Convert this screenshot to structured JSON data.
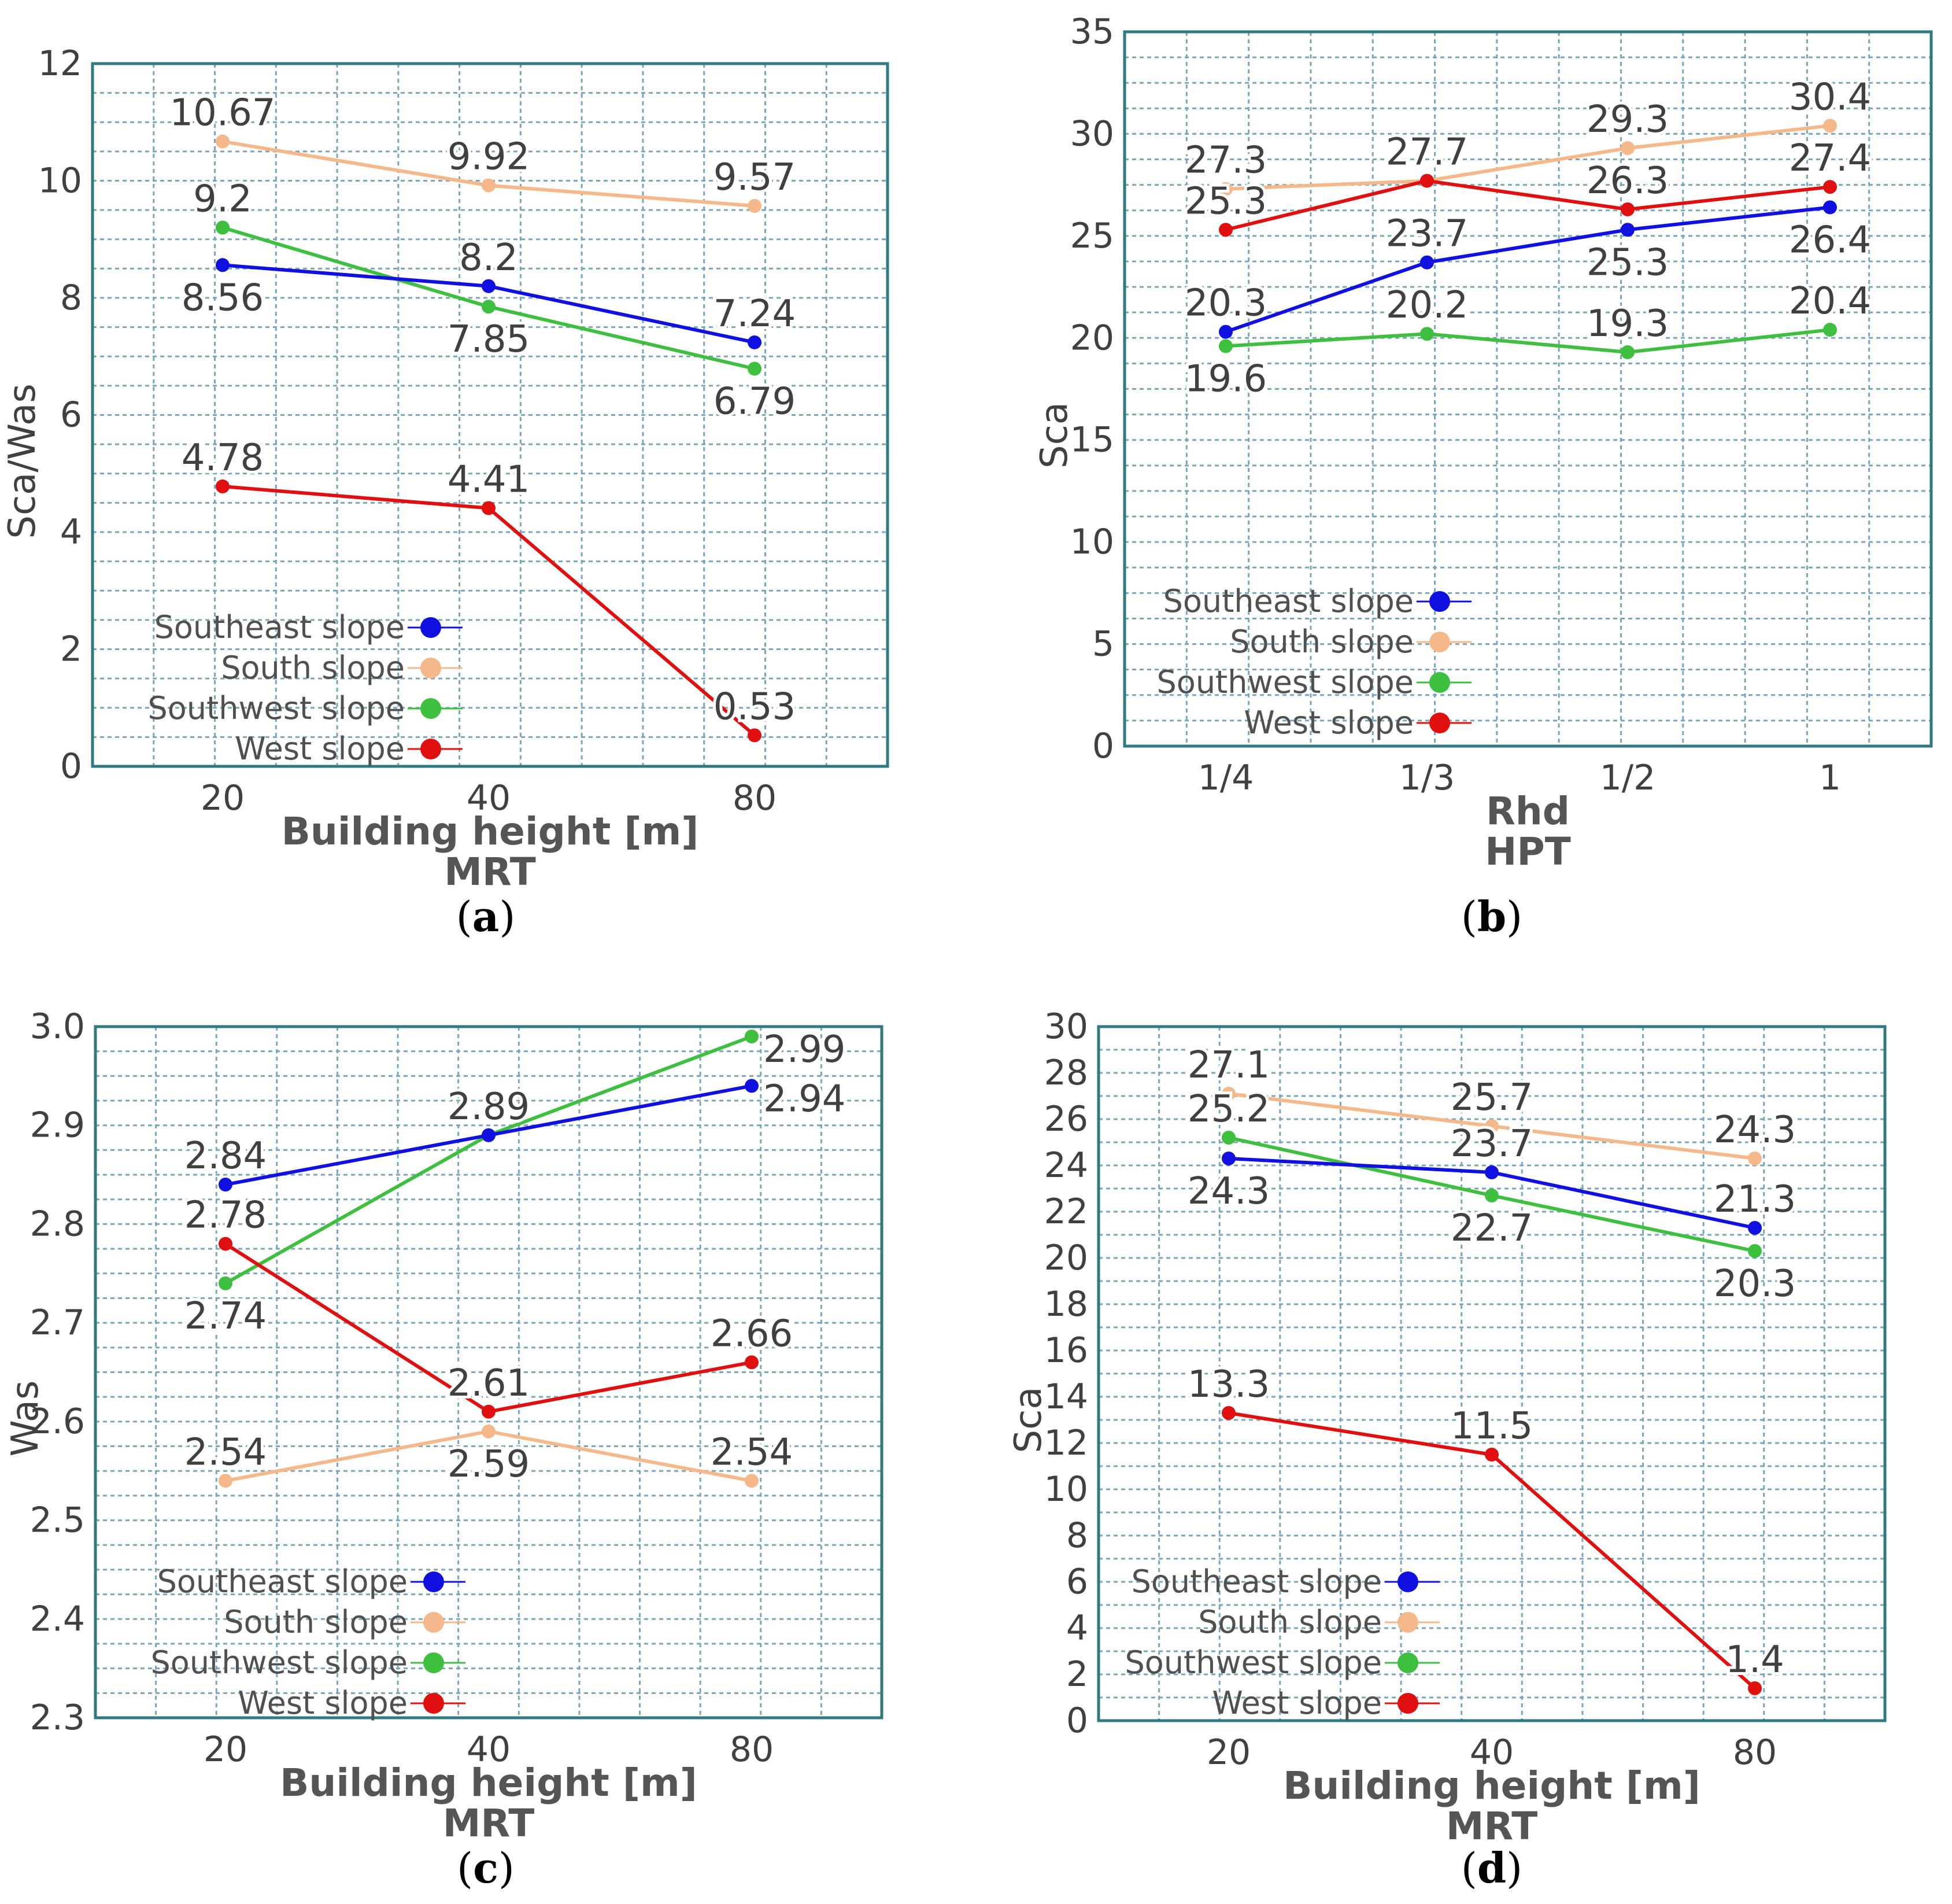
{
  "colors": {
    "Southeast slope": "#1010e0",
    "South slope": "#f5b88a",
    "Southwest slope": "#3fbf3f",
    "West slope": "#e01010",
    "grid": "#7aa6b8",
    "frame": "#2e7a80"
  },
  "legend_labels": [
    "Southeast slope",
    "South slope",
    "Southwest slope",
    "West slope"
  ],
  "chart_data": [
    {
      "panel": "a",
      "type": "line",
      "categories": [
        "20",
        "40",
        "80"
      ],
      "xlabel": "Building height [m]",
      "xlabel2": "MRT",
      "ylabel": "Sca/Was",
      "ylim": [
        0,
        12
      ],
      "yticks": [
        "0",
        "2",
        "4",
        "6",
        "8",
        "10",
        "12"
      ],
      "series": [
        {
          "name": "Southeast slope",
          "values": [
            8.56,
            8.2,
            7.24
          ],
          "labels": [
            "8.56",
            "8.2",
            "7.24"
          ],
          "label_pos": [
            "below",
            "above",
            "above"
          ]
        },
        {
          "name": "South slope",
          "values": [
            10.67,
            9.92,
            9.57
          ],
          "labels": [
            "10.67",
            "9.92",
            "9.57"
          ],
          "label_pos": [
            "above",
            "above",
            "above"
          ]
        },
        {
          "name": "Southwest slope",
          "values": [
            9.2,
            7.85,
            6.79
          ],
          "labels": [
            "9.2",
            "7.85",
            "6.79"
          ],
          "label_pos": [
            "above",
            "below",
            "below"
          ]
        },
        {
          "name": "West slope",
          "values": [
            4.78,
            4.41,
            0.53
          ],
          "labels": [
            "4.78",
            "4.41",
            "0.53"
          ],
          "label_pos": [
            "above",
            "above",
            "above"
          ]
        }
      ]
    },
    {
      "panel": "b",
      "type": "line",
      "categories": [
        "1/4",
        "1/3",
        "1/2",
        "1"
      ],
      "xlabel": "Rhd",
      "xlabel2": "HPT",
      "ylabel": "Sca",
      "ylim": [
        0,
        35
      ],
      "yticks": [
        "0",
        "5",
        "10",
        "15",
        "20",
        "25",
        "30",
        "35"
      ],
      "series": [
        {
          "name": "Southeast slope",
          "values": [
            20.3,
            23.7,
            25.3,
            26.4
          ],
          "labels": [
            "20.3",
            "23.7",
            "25.3",
            "26.4"
          ],
          "label_pos": [
            "above",
            "above",
            "below",
            "below"
          ]
        },
        {
          "name": "South slope",
          "values": [
            27.3,
            27.7,
            29.3,
            30.4
          ],
          "labels": [
            "27.3",
            "27.7",
            "29.3",
            "30.4"
          ],
          "label_pos": [
            "above",
            "above",
            "above",
            "above"
          ]
        },
        {
          "name": "Southwest slope",
          "values": [
            19.6,
            20.2,
            19.3,
            20.4
          ],
          "labels": [
            "19.6",
            "20.2",
            "19.3",
            "20.4"
          ],
          "label_pos": [
            "below",
            "above",
            "above",
            "above"
          ]
        },
        {
          "name": "West slope",
          "values": [
            25.3,
            27.7,
            26.3,
            27.4
          ],
          "labels": [
            "25.3",
            "",
            "26.3",
            "27.4"
          ],
          "label_pos": [
            "above",
            "above",
            "above",
            "above"
          ]
        }
      ]
    },
    {
      "panel": "c",
      "type": "line",
      "categories": [
        "20",
        "40",
        "80"
      ],
      "xlabel": "Building height [m]",
      "xlabel2": "MRT",
      "ylabel": "Was",
      "ylim": [
        2.3,
        3.0
      ],
      "yticks": [
        "2.3",
        "2.4",
        "2.5",
        "2.6",
        "2.7",
        "2.8",
        "2.9",
        "3.0"
      ],
      "series": [
        {
          "name": "Southeast slope",
          "values": [
            2.84,
            2.89,
            2.94
          ],
          "labels": [
            "2.84",
            "2.89",
            "2.94"
          ],
          "label_pos": [
            "above",
            "above",
            "right"
          ]
        },
        {
          "name": "South slope",
          "values": [
            2.54,
            2.59,
            2.54
          ],
          "labels": [
            "2.54",
            "2.59",
            "2.54"
          ],
          "label_pos": [
            "above",
            "below",
            "above"
          ]
        },
        {
          "name": "Southwest slope",
          "values": [
            2.74,
            2.89,
            2.99
          ],
          "labels": [
            "2.74",
            "",
            "2.99"
          ],
          "label_pos": [
            "below",
            "above",
            "right"
          ]
        },
        {
          "name": "West slope",
          "values": [
            2.78,
            2.61,
            2.66
          ],
          "labels": [
            "2.78",
            "2.61",
            "2.66"
          ],
          "label_pos": [
            "above",
            "above",
            "above"
          ]
        }
      ]
    },
    {
      "panel": "d",
      "type": "line",
      "categories": [
        "20",
        "40",
        "80"
      ],
      "xlabel": "Building height [m]",
      "xlabel2": "MRT",
      "ylabel": "Sca",
      "ylim": [
        0,
        30
      ],
      "yticks": [
        "0",
        "2",
        "4",
        "6",
        "8",
        "10",
        "12",
        "14",
        "16",
        "18",
        "20",
        "22",
        "24",
        "26",
        "28",
        "30"
      ],
      "series": [
        {
          "name": "Southeast slope",
          "values": [
            24.3,
            23.7,
            21.3
          ],
          "labels": [
            "24.3",
            "23.7",
            "21.3"
          ],
          "label_pos": [
            "below",
            "above",
            "above"
          ]
        },
        {
          "name": "South slope",
          "values": [
            27.1,
            25.7,
            24.3
          ],
          "labels": [
            "27.1",
            "25.7",
            "24.3"
          ],
          "label_pos": [
            "above",
            "above",
            "above"
          ]
        },
        {
          "name": "Southwest slope",
          "values": [
            25.2,
            22.7,
            20.3
          ],
          "labels": [
            "25.2",
            "22.7",
            "20.3"
          ],
          "label_pos": [
            "above",
            "below",
            "below"
          ]
        },
        {
          "name": "West slope",
          "values": [
            13.3,
            11.5,
            1.4
          ],
          "labels": [
            "13.3",
            "11.5",
            "1.4"
          ],
          "label_pos": [
            "above",
            "above",
            "above"
          ]
        }
      ]
    }
  ],
  "panel_labels": [
    "a",
    "b",
    "c",
    "d"
  ]
}
